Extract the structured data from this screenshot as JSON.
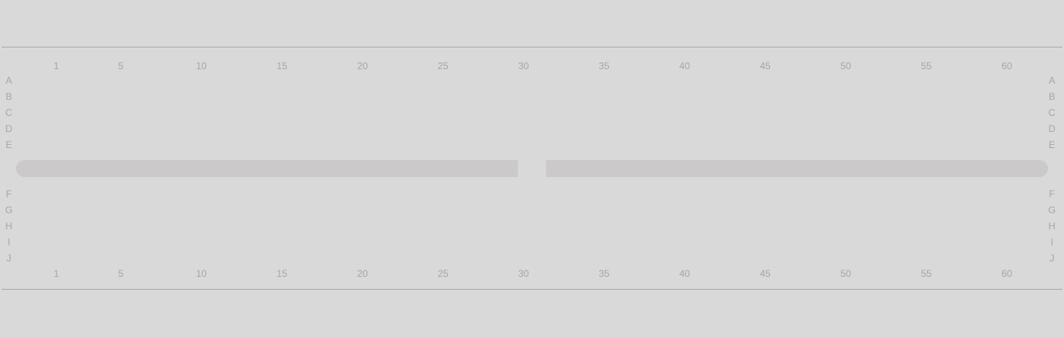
{
  "grid": {
    "columns": [
      "1",
      "5",
      "10",
      "15",
      "20",
      "25",
      "30",
      "35",
      "40",
      "45",
      "50",
      "55",
      "60"
    ],
    "rows_upper": [
      "A",
      "B",
      "C",
      "D",
      "E"
    ],
    "rows_lower": [
      "F",
      "G",
      "H",
      "I",
      "J"
    ]
  },
  "colors": {
    "background": "#d9d9d9",
    "rule_line": "#a9a9a9",
    "label_text": "#a6a6a6",
    "divider_strip": "#cbc9c9"
  }
}
